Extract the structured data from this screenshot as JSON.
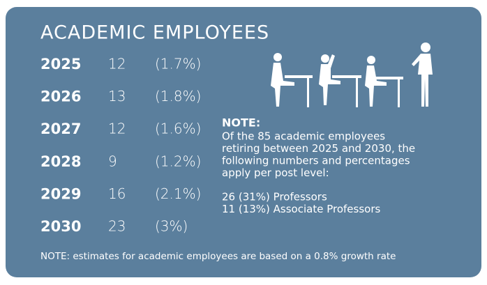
{
  "title": "ACADEMIC EMPLOYEES",
  "rows": [
    {
      "year": "2025",
      "count": "12",
      "percent": "(1.7%)"
    },
    {
      "year": "2026",
      "count": "13",
      "percent": "(1.8%)"
    },
    {
      "year": "2027",
      "count": "12",
      "percent": "(1.6%)"
    },
    {
      "year": "2028",
      "count": "9",
      "percent": "(1.2%)"
    },
    {
      "year": "2029",
      "count": "16",
      "percent": "(2.1%)"
    },
    {
      "year": "2030",
      "count": "23",
      "percent": "(3%)"
    }
  ],
  "note": {
    "heading": "NOTE:",
    "lines": [
      "Of the 85 academic employees",
      "retiring between 2025 and 2030, the",
      "following numbers and percentages",
      "apply per post level:"
    ],
    "items": [
      "26 (31%) Professors",
      "11 (13%) Associate Professors"
    ]
  },
  "footnote": "NOTE: estimates for academic employees are based on a 0.8% growth rate"
}
